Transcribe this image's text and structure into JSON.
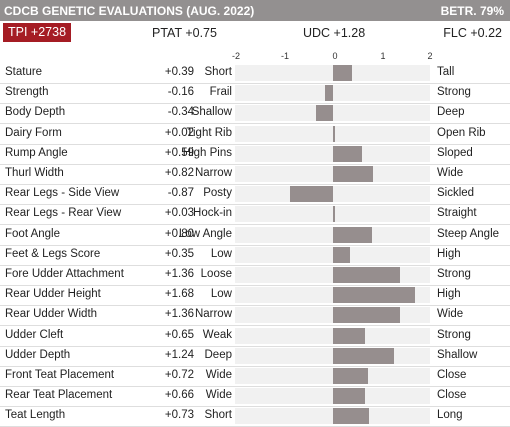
{
  "header": {
    "title": "CDCB GENETIC EVALUATIONS (AUG. 2022)",
    "betr": "BETR. 79%"
  },
  "summary": {
    "tpi": "TPI +2738",
    "ptat": "PTAT +0.75",
    "udc": "UDC +1.28",
    "flc": "FLC +0.22"
  },
  "scale": {
    "ticks": [
      "-2",
      "-1",
      "0",
      "1",
      "2"
    ],
    "min": -2,
    "max": 2
  },
  "colors": {
    "header_bg": "#939090",
    "tpi_badge": "#a51c24",
    "bar": "#968e8e",
    "track": "#f1f1f1"
  },
  "traits": [
    {
      "name": "Stature",
      "value": "+0.39",
      "num": 0.39,
      "low": "Short",
      "high": "Tall"
    },
    {
      "name": "Strength",
      "value": "-0.16",
      "num": -0.16,
      "low": "Frail",
      "high": "Strong"
    },
    {
      "name": "Body Depth",
      "value": "-0.34",
      "num": -0.34,
      "low": "Shallow",
      "high": "Deep"
    },
    {
      "name": "Dairy Form",
      "value": "+0.02",
      "num": 0.02,
      "low": "Tight Rib",
      "high": "Open Rib"
    },
    {
      "name": "Rump Angle",
      "value": "+0.59",
      "num": 0.59,
      "low": "High Pins",
      "high": "Sloped"
    },
    {
      "name": "Thurl Width",
      "value": "+0.82",
      "num": 0.82,
      "low": "Narrow",
      "high": "Wide"
    },
    {
      "name": "Rear Legs - Side View",
      "value": "-0.87",
      "num": -0.87,
      "low": "Posty",
      "high": "Sickled"
    },
    {
      "name": "Rear Legs - Rear View",
      "value": "+0.03",
      "num": 0.03,
      "low": "Hock-in",
      "high": "Straight"
    },
    {
      "name": "Foot Angle",
      "value": "+0.80",
      "num": 0.8,
      "low": "Low Angle",
      "high": "Steep Angle"
    },
    {
      "name": "Feet & Legs Score",
      "value": "+0.35",
      "num": 0.35,
      "low": "Low",
      "high": "High"
    },
    {
      "name": "Fore Udder Attachment",
      "value": "+1.36",
      "num": 1.36,
      "low": "Loose",
      "high": "Strong"
    },
    {
      "name": "Rear Udder Height",
      "value": "+1.68",
      "num": 1.68,
      "low": "Low",
      "high": "High"
    },
    {
      "name": "Rear Udder Width",
      "value": "+1.36",
      "num": 1.36,
      "low": "Narrow",
      "high": "Wide"
    },
    {
      "name": "Udder Cleft",
      "value": "+0.65",
      "num": 0.65,
      "low": "Weak",
      "high": "Strong"
    },
    {
      "name": "Udder Depth",
      "value": "+1.24",
      "num": 1.24,
      "low": "Deep",
      "high": "Shallow"
    },
    {
      "name": "Front Teat Placement",
      "value": "+0.72",
      "num": 0.72,
      "low": "Wide",
      "high": "Close"
    },
    {
      "name": "Rear Teat Placement",
      "value": "+0.66",
      "num": 0.66,
      "low": "Wide",
      "high": "Close"
    },
    {
      "name": "Teat Length",
      "value": "+0.73",
      "num": 0.73,
      "low": "Short",
      "high": "Long"
    }
  ]
}
